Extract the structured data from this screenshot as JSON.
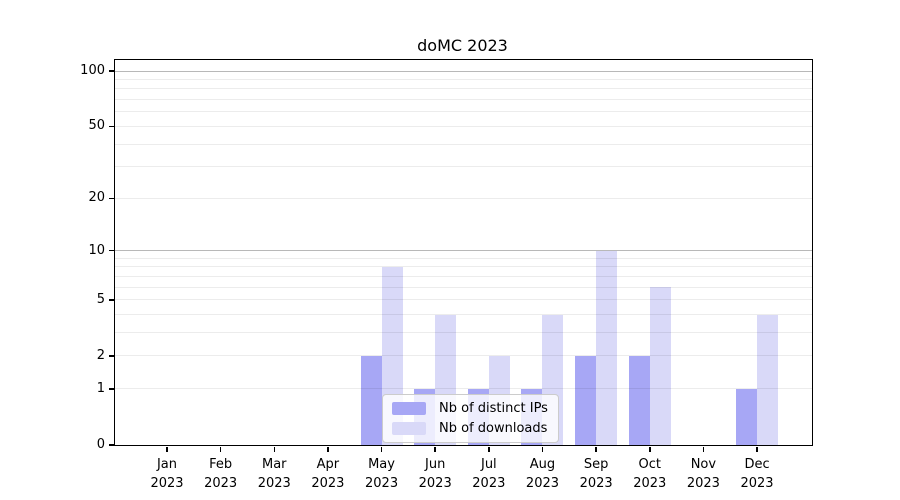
{
  "chart_data": {
    "type": "bar",
    "title": "doMC 2023",
    "categories": [
      {
        "month": "Jan",
        "year": "2023"
      },
      {
        "month": "Feb",
        "year": "2023"
      },
      {
        "month": "Mar",
        "year": "2023"
      },
      {
        "month": "Apr",
        "year": "2023"
      },
      {
        "month": "May",
        "year": "2023"
      },
      {
        "month": "Jun",
        "year": "2023"
      },
      {
        "month": "Jul",
        "year": "2023"
      },
      {
        "month": "Aug",
        "year": "2023"
      },
      {
        "month": "Sep",
        "year": "2023"
      },
      {
        "month": "Oct",
        "year": "2023"
      },
      {
        "month": "Nov",
        "year": "2023"
      },
      {
        "month": "Dec",
        "year": "2023"
      }
    ],
    "series": [
      {
        "name": "Nb of distinct IPs",
        "color": "#a7a7f5",
        "values": [
          0,
          0,
          0,
          0,
          2,
          1,
          1,
          1,
          2,
          2,
          0,
          1
        ]
      },
      {
        "name": "Nb of downloads",
        "color": "#d9d9f8",
        "values": [
          0,
          0,
          0,
          0,
          8,
          4,
          2,
          4,
          10,
          6,
          0,
          4
        ]
      }
    ],
    "y_axis": {
      "scale": "log10(1+x)",
      "tick_labels": [
        "0",
        "1",
        "2",
        "5",
        "10",
        "20",
        "50",
        "100"
      ],
      "tick_values": [
        0,
        1,
        2,
        5,
        10,
        20,
        50,
        100
      ],
      "major_gridlines": [
        10,
        100
      ],
      "minor_gridlines": [
        1,
        2,
        3,
        4,
        5,
        6,
        7,
        8,
        9,
        20,
        30,
        40,
        50,
        60,
        70,
        80,
        90
      ],
      "ylim": [
        0,
        100
      ]
    },
    "legend": {
      "position": "lower-center",
      "items": [
        "Nb of distinct IPs",
        "Nb of downloads"
      ]
    },
    "grid": true
  }
}
